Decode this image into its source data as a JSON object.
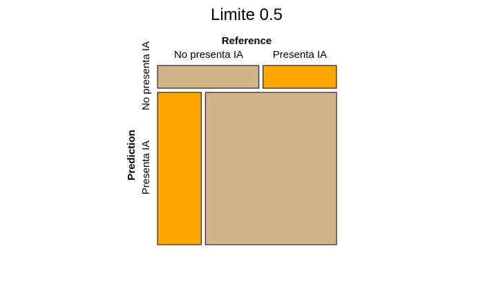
{
  "chart_data": {
    "type": "mosaic",
    "title": "Limite 0.5",
    "xlabel": "Reference",
    "ylabel": "Prediction",
    "x_categories": [
      "No presenta IA",
      "Presenta IA"
    ],
    "y_categories": [
      "No presenta IA",
      "Presenta IA"
    ],
    "cells": [
      {
        "prediction": "No presenta IA",
        "reference": "No presenta IA",
        "share": 0.58,
        "color": "#D2B48C"
      },
      {
        "prediction": "No presenta IA",
        "reference": "Presenta IA",
        "share": 0.42,
        "color": "#FFA500"
      },
      {
        "prediction": "Presenta IA",
        "reference": "No presenta IA",
        "share": 0.25,
        "color": "#FFA500"
      },
      {
        "prediction": "Presenta IA",
        "reference": "Presenta IA",
        "share": 0.75,
        "color": "#D2B48C"
      }
    ],
    "row_shares": [
      0.13,
      0.87
    ],
    "colors": {
      "correct": "#D2B48C",
      "incorrect": "#FFA500",
      "border": "#000000"
    }
  }
}
